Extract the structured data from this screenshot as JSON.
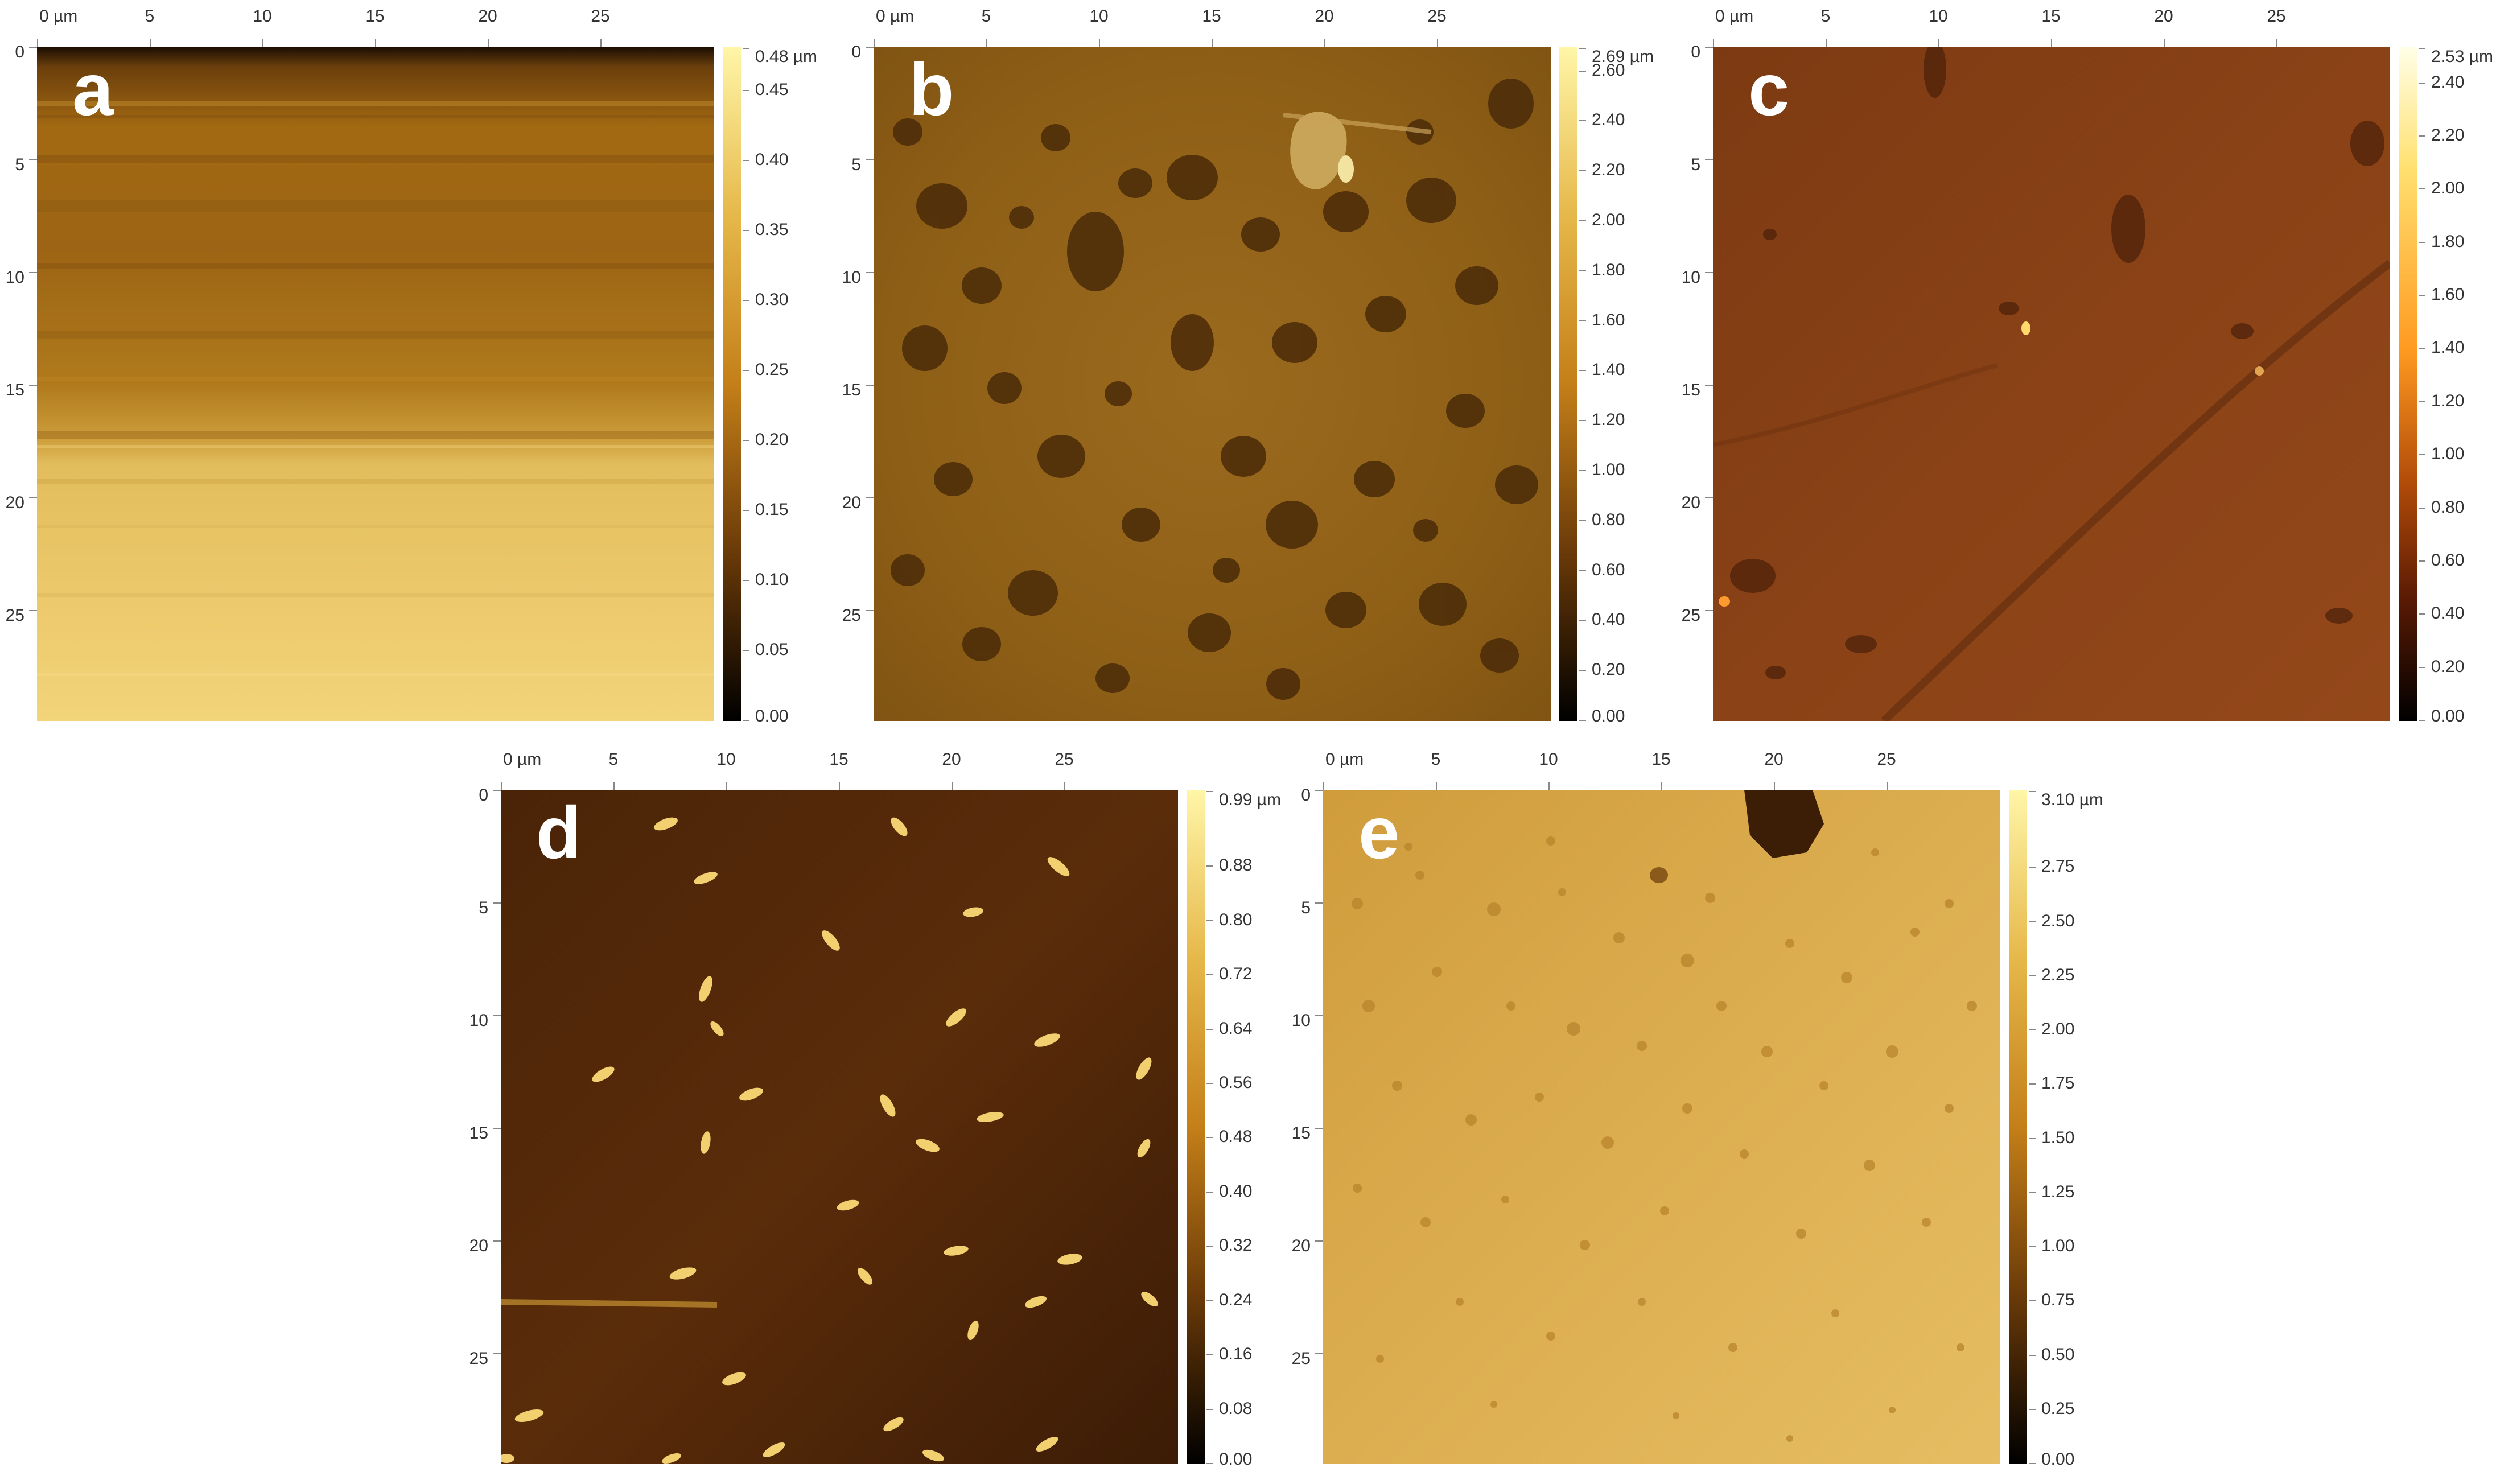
{
  "axis_unit_label": "0 µm",
  "x_ticks": [
    "0 µm",
    "5",
    "10",
    "15",
    "20",
    "25"
  ],
  "y_ticks": [
    "0",
    "5",
    "10",
    "15",
    "20",
    "25"
  ],
  "colors": {
    "colorbar_top": "#fff6a8",
    "colorbar_mid": "#c47f18",
    "colorbar_bottom": "#000000"
  },
  "panels": [
    {
      "id": "a",
      "letter": "a",
      "colorbar_ticks": [
        "0.48 µm",
        "0.45",
        "0.40",
        "0.35",
        "0.30",
        "0.25",
        "0.20",
        "0.15",
        "0.10",
        "0.05",
        "0.00"
      ]
    },
    {
      "id": "b",
      "letter": "b",
      "colorbar_ticks": [
        "2.69 µm",
        "2.60",
        "2.40",
        "2.20",
        "2.00",
        "1.80",
        "1.60",
        "1.40",
        "1.20",
        "1.00",
        "0.80",
        "0.60",
        "0.40",
        "0.20",
        "0.00"
      ]
    },
    {
      "id": "c",
      "letter": "c",
      "colorbar_ticks": [
        "2.53 µm",
        "2.40",
        "2.20",
        "2.00",
        "1.80",
        "1.60",
        "1.40",
        "1.20",
        "1.00",
        "0.80",
        "0.60",
        "0.40",
        "0.20",
        "0.00"
      ]
    },
    {
      "id": "d",
      "letter": "d",
      "colorbar_ticks": [
        "0.99 µm",
        "0.88",
        "0.80",
        "0.72",
        "0.64",
        "0.56",
        "0.48",
        "0.40",
        "0.32",
        "0.24",
        "0.16",
        "0.08",
        "0.00"
      ]
    },
    {
      "id": "e",
      "letter": "e",
      "colorbar_ticks": [
        "3.10 µm",
        "2.75",
        "2.50",
        "2.25",
        "2.00",
        "1.75",
        "1.50",
        "1.25",
        "1.00",
        "0.75",
        "0.50",
        "0.25",
        "0.00"
      ]
    }
  ]
}
